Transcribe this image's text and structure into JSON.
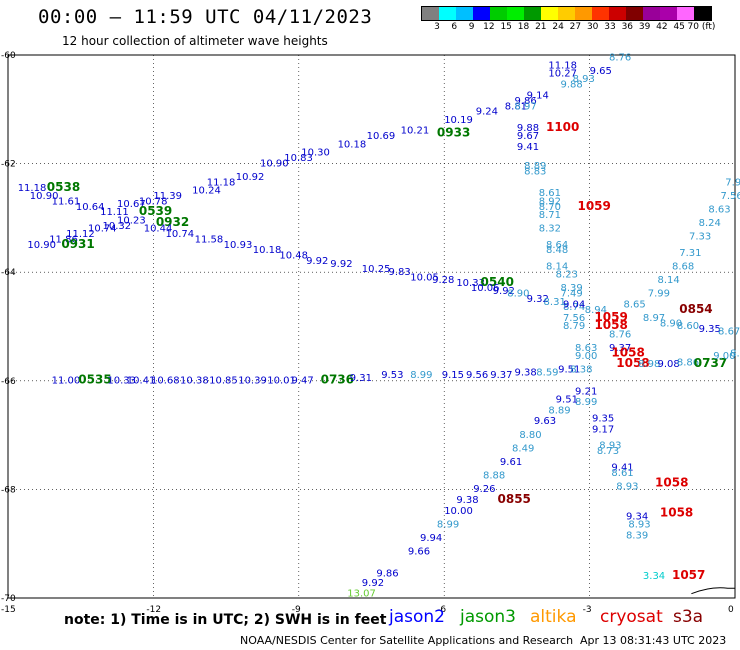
{
  "header": {
    "title": "00:00 – 11:59 UTC 04/11/2023",
    "subtitle": "12 hour collection of altimeter wave heights"
  },
  "colorbar": {
    "colors": [
      "#808080",
      "#00ffff",
      "#00bfff",
      "#0000ff",
      "#00cc00",
      "#00ee00",
      "#009900",
      "#ffff00",
      "#ffcc00",
      "#ff9900",
      "#ff3300",
      "#cc0000",
      "#800000",
      "#990099",
      "#aa00aa",
      "#ff66ff",
      "#000000"
    ],
    "labels": [
      "3",
      "6",
      "9",
      "12",
      "15",
      "18",
      "21",
      "24",
      "27",
      "30",
      "33",
      "36",
      "39",
      "42",
      "45",
      "70 (ft)"
    ]
  },
  "axes": {
    "y_labels": [
      "-60",
      "-62",
      "-64",
      "-66",
      "-68",
      "-70"
    ],
    "x_labels": [
      "-15",
      "-12",
      "-9",
      "-6",
      "-3",
      "0"
    ]
  },
  "chart_data": {
    "type": "map",
    "lon_range": [
      -15,
      0
    ],
    "lat_range": [
      -70,
      -60
    ],
    "grid": true,
    "labels": [
      {
        "t": "11.18",
        "lon": -3.85,
        "lat": -60.25,
        "c": "#0000cc"
      },
      {
        "t": "10.27",
        "lon": -3.85,
        "lat": -60.4,
        "c": "#0000cc"
      },
      {
        "t": "9.88",
        "lon": -3.6,
        "lat": -60.6,
        "c": "#3399cc"
      },
      {
        "t": "8.93",
        "lon": -3.35,
        "lat": -60.5,
        "c": "#3399cc"
      },
      {
        "t": "9.65",
        "lon": -3.0,
        "lat": -60.35,
        "c": "#0000cc"
      },
      {
        "t": "8.76",
        "lon": -2.6,
        "lat": -60.1,
        "c": "#3399cc"
      },
      {
        "t": "9.14",
        "lon": -4.3,
        "lat": -60.8,
        "c": "#0000cc"
      },
      {
        "t": "8.81",
        "lon": -4.75,
        "lat": -61.0,
        "c": "#0000cc"
      },
      {
        "t": "9.24",
        "lon": -5.35,
        "lat": -61.1,
        "c": "#0000cc"
      },
      {
        "t": "10.19",
        "lon": -6.0,
        "lat": -61.25,
        "c": "#0000cc"
      },
      {
        "t": "0933",
        "lon": -6.15,
        "lat": -61.5,
        "c": "#007700",
        "b": true
      },
      {
        "t": "10.21",
        "lon": -6.9,
        "lat": -61.45,
        "c": "#0000cc"
      },
      {
        "t": "10.69",
        "lon": -7.6,
        "lat": -61.55,
        "c": "#0000cc"
      },
      {
        "t": "10.18",
        "lon": -8.2,
        "lat": -61.7,
        "c": "#0000cc"
      },
      {
        "t": "10.30",
        "lon": -8.95,
        "lat": -61.85,
        "c": "#0000cc"
      },
      {
        "t": "10.90",
        "lon": -9.8,
        "lat": -62.05,
        "c": "#0000cc"
      },
      {
        "t": "10.92",
        "lon": -10.3,
        "lat": -62.3,
        "c": "#0000cc"
      },
      {
        "t": "10.83",
        "lon": -9.3,
        "lat": -61.95,
        "c": "#0000cc"
      },
      {
        "t": "11.18",
        "lon": -10.9,
        "lat": -62.4,
        "c": "#0000cc"
      },
      {
        "t": "10.24",
        "lon": -11.2,
        "lat": -62.55,
        "c": "#0000cc"
      },
      {
        "t": "11.39",
        "lon": -12.0,
        "lat": -62.65,
        "c": "#0000cc"
      },
      {
        "t": "10.78",
        "lon": -12.3,
        "lat": -62.75,
        "c": "#0000cc"
      },
      {
        "t": "10.67",
        "lon": -12.75,
        "lat": -62.8,
        "c": "#0000cc"
      },
      {
        "t": "9.86",
        "lon": -4.55,
        "lat": -60.9,
        "c": "#0000cc"
      },
      {
        "t": "8.97",
        "lon": -4.55,
        "lat": -61.0,
        "c": "#3399cc"
      },
      {
        "t": "9.88",
        "lon": -4.5,
        "lat": -61.4,
        "c": "#0000cc"
      },
      {
        "t": "9.67",
        "lon": -4.5,
        "lat": -61.55,
        "c": "#0000cc"
      },
      {
        "t": "9.41",
        "lon": -4.5,
        "lat": -61.75,
        "c": "#0000cc"
      },
      {
        "t": "1100",
        "lon": -3.9,
        "lat": -61.4,
        "c": "#dd0000",
        "b": true
      },
      {
        "t": "8.89",
        "lon": -4.35,
        "lat": -62.1,
        "c": "#3399cc"
      },
      {
        "t": "8.83",
        "lon": -4.35,
        "lat": -62.2,
        "c": "#3399cc"
      },
      {
        "t": "8.61",
        "lon": -4.05,
        "lat": -62.6,
        "c": "#3399cc"
      },
      {
        "t": "8.92",
        "lon": -4.05,
        "lat": -62.75,
        "c": "#3399cc"
      },
      {
        "t": "8.70",
        "lon": -4.05,
        "lat": -62.85,
        "c": "#3399cc"
      },
      {
        "t": "1059",
        "lon": -3.25,
        "lat": -62.85,
        "c": "#dd0000",
        "b": true
      },
      {
        "t": "8.71",
        "lon": -4.05,
        "lat": -63.0,
        "c": "#3399cc"
      },
      {
        "t": "8.32",
        "lon": -4.05,
        "lat": -63.25,
        "c": "#3399cc"
      },
      {
        "t": "8.64",
        "lon": -3.9,
        "lat": -63.55,
        "c": "#3399cc"
      },
      {
        "t": "8.48",
        "lon": -3.9,
        "lat": -63.65,
        "c": "#3399cc"
      },
      {
        "t": "8.14",
        "lon": -3.9,
        "lat": -63.95,
        "c": "#3399cc"
      },
      {
        "t": "8.23",
        "lon": -3.7,
        "lat": -64.1,
        "c": "#3399cc"
      },
      {
        "t": "8.39",
        "lon": -3.6,
        "lat": -64.35,
        "c": "#3399cc"
      },
      {
        "t": "7.49",
        "lon": -3.6,
        "lat": -64.45,
        "c": "#3399cc"
      },
      {
        "t": "8.74",
        "lon": -3.55,
        "lat": -64.7,
        "c": "#3399cc"
      },
      {
        "t": "8.94",
        "lon": -3.1,
        "lat": -64.75,
        "c": "#3399cc"
      },
      {
        "t": "7.56",
        "lon": -3.55,
        "lat": -64.9,
        "c": "#3399cc"
      },
      {
        "t": "8.79",
        "lon": -3.55,
        "lat": -65.05,
        "c": "#3399cc"
      },
      {
        "t": "1059",
        "lon": -2.9,
        "lat": -64.9,
        "c": "#dd0000",
        "b": true
      },
      {
        "t": "1058",
        "lon": -2.9,
        "lat": -65.05,
        "c": "#dd0000",
        "b": true
      },
      {
        "t": "8.76",
        "lon": -2.6,
        "lat": -65.2,
        "c": "#3399cc"
      },
      {
        "t": "8.63",
        "lon": -3.3,
        "lat": -65.45,
        "c": "#3399cc"
      },
      {
        "t": "9.00",
        "lon": -3.3,
        "lat": -65.6,
        "c": "#3399cc"
      },
      {
        "t": "9.37",
        "lon": -2.6,
        "lat": -65.45,
        "c": "#0000cc"
      },
      {
        "t": "1058",
        "lon": -2.55,
        "lat": -65.55,
        "c": "#dd0000",
        "b": true
      },
      {
        "t": "1058",
        "lon": -2.45,
        "lat": -65.75,
        "c": "#dd0000",
        "b": true
      },
      {
        "t": "8.98",
        "lon": -2.0,
        "lat": -65.75,
        "c": "#3399cc"
      },
      {
        "t": "9.08",
        "lon": -1.6,
        "lat": -65.75,
        "c": "#0000cc"
      },
      {
        "t": "8.86",
        "lon": -1.2,
        "lat": -65.72,
        "c": "#3399cc"
      },
      {
        "t": "0737",
        "lon": -0.85,
        "lat": -65.75,
        "c": "#007700",
        "b": true
      },
      {
        "t": "9.00",
        "lon": -0.45,
        "lat": -65.6,
        "c": "#3399cc"
      },
      {
        "t": "8.22",
        "lon": -0.1,
        "lat": -65.55,
        "c": "#3399cc"
      },
      {
        "t": "8.97",
        "lon": -1.9,
        "lat": -64.9,
        "c": "#3399cc"
      },
      {
        "t": "8.90",
        "lon": -1.55,
        "lat": -65.0,
        "c": "#3399cc"
      },
      {
        "t": "8.60",
        "lon": -1.2,
        "lat": -65.05,
        "c": "#3399cc"
      },
      {
        "t": "9.35",
        "lon": -0.75,
        "lat": -65.1,
        "c": "#0000cc"
      },
      {
        "t": "8.67",
        "lon": -0.35,
        "lat": -65.15,
        "c": "#3399cc"
      },
      {
        "t": "0854",
        "lon": -1.15,
        "lat": -64.75,
        "c": "#880000",
        "b": true
      },
      {
        "t": "8.65",
        "lon": -2.3,
        "lat": -64.65,
        "c": "#3399cc"
      },
      {
        "t": "7.99",
        "lon": -1.8,
        "lat": -64.45,
        "c": "#3399cc"
      },
      {
        "t": "8.14",
        "lon": -1.6,
        "lat": -64.2,
        "c": "#3399cc"
      },
      {
        "t": "8.68",
        "lon": -1.3,
        "lat": -63.95,
        "c": "#3399cc"
      },
      {
        "t": "7.31",
        "lon": -1.15,
        "lat": -63.7,
        "c": "#3399cc"
      },
      {
        "t": "7.33",
        "lon": -0.95,
        "lat": -63.4,
        "c": "#3399cc"
      },
      {
        "t": "8.24",
        "lon": -0.75,
        "lat": -63.15,
        "c": "#3399cc"
      },
      {
        "t": "8.63",
        "lon": -0.55,
        "lat": -62.9,
        "c": "#3399cc"
      },
      {
        "t": "7.56",
        "lon": -0.3,
        "lat": -62.65,
        "c": "#3399cc"
      },
      {
        "t": "7.91",
        "lon": -0.2,
        "lat": -62.4,
        "c": "#3399cc"
      },
      {
        "t": "11.18",
        "lon": -14.8,
        "lat": -62.5,
        "c": "#0000cc"
      },
      {
        "t": "0538",
        "lon": -14.2,
        "lat": -62.5,
        "c": "#007700",
        "b": true
      },
      {
        "t": "10.90",
        "lon": -14.55,
        "lat": -62.65,
        "c": "#0000cc"
      },
      {
        "t": "11.61",
        "lon": -14.1,
        "lat": -62.75,
        "c": "#0000cc"
      },
      {
        "t": "10.64",
        "lon": -13.6,
        "lat": -62.85,
        "c": "#0000cc"
      },
      {
        "t": "11.11",
        "lon": -13.1,
        "lat": -62.95,
        "c": "#0000cc"
      },
      {
        "t": "0539",
        "lon": -12.3,
        "lat": -62.95,
        "c": "#007700",
        "b": true
      },
      {
        "t": "10.23",
        "lon": -12.75,
        "lat": -63.1,
        "c": "#0000cc"
      },
      {
        "t": "0932",
        "lon": -11.95,
        "lat": -63.15,
        "c": "#007700",
        "b": true
      },
      {
        "t": "10.74",
        "lon": -13.35,
        "lat": -63.25,
        "c": "#0000cc"
      },
      {
        "t": "10.32",
        "lon": -13.05,
        "lat": -63.2,
        "c": "#0000cc"
      },
      {
        "t": "10.44",
        "lon": -12.2,
        "lat": -63.25,
        "c": "#0000cc"
      },
      {
        "t": "10.74",
        "lon": -11.75,
        "lat": -63.35,
        "c": "#0000cc"
      },
      {
        "t": "11.58",
        "lon": -11.15,
        "lat": -63.45,
        "c": "#0000cc"
      },
      {
        "t": "10.93",
        "lon": -10.55,
        "lat": -63.55,
        "c": "#0000cc"
      },
      {
        "t": "10.18",
        "lon": -9.95,
        "lat": -63.65,
        "c": "#0000cc"
      },
      {
        "t": "10.48",
        "lon": -9.4,
        "lat": -63.75,
        "c": "#0000cc"
      },
      {
        "t": "9.92",
        "lon": -8.85,
        "lat": -63.85,
        "c": "#0000cc"
      },
      {
        "t": "9.92",
        "lon": -8.35,
        "lat": -63.9,
        "c": "#0000cc"
      },
      {
        "t": "10.25",
        "lon": -7.7,
        "lat": -64.0,
        "c": "#0000cc"
      },
      {
        "t": "9.83",
        "lon": -7.15,
        "lat": -64.05,
        "c": "#0000cc"
      },
      {
        "t": "10.05",
        "lon": -6.7,
        "lat": -64.15,
        "c": "#0000cc"
      },
      {
        "t": "9.28",
        "lon": -6.25,
        "lat": -64.2,
        "c": "#0000cc"
      },
      {
        "t": "10.33",
        "lon": -5.75,
        "lat": -64.25,
        "c": "#0000cc"
      },
      {
        "t": "0540",
        "lon": -5.25,
        "lat": -64.25,
        "c": "#007700",
        "b": true
      },
      {
        "t": "10.06",
        "lon": -5.45,
        "lat": -64.35,
        "c": "#0000cc"
      },
      {
        "t": "9.92",
        "lon": -5.0,
        "lat": -64.4,
        "c": "#0000cc"
      },
      {
        "t": "8.90",
        "lon": -4.7,
        "lat": -64.45,
        "c": "#3399cc"
      },
      {
        "t": "9.32",
        "lon": -4.3,
        "lat": -64.55,
        "c": "#0000cc"
      },
      {
        "t": "8.31",
        "lon": -3.95,
        "lat": -64.6,
        "c": "#3399cc"
      },
      {
        "t": "9.04",
        "lon": -3.55,
        "lat": -64.65,
        "c": "#0000cc"
      },
      {
        "t": "10.90",
        "lon": -14.6,
        "lat": -63.55,
        "c": "#0000cc"
      },
      {
        "t": "11.86",
        "lon": -14.15,
        "lat": -63.45,
        "c": "#0000cc"
      },
      {
        "t": "0931",
        "lon": -13.9,
        "lat": -63.55,
        "c": "#007700",
        "b": true
      },
      {
        "t": "11.12",
        "lon": -13.8,
        "lat": -63.35,
        "c": "#0000cc"
      },
      {
        "t": "11.00",
        "lon": -14.1,
        "lat": -66.05,
        "c": "#0000cc"
      },
      {
        "t": "0535",
        "lon": -13.55,
        "lat": -66.05,
        "c": "#007700",
        "b": true
      },
      {
        "t": "10.33",
        "lon": -12.95,
        "lat": -66.05,
        "c": "#0000cc"
      },
      {
        "t": "10.41",
        "lon": -12.55,
        "lat": -66.05,
        "c": "#0000cc"
      },
      {
        "t": "10.68",
        "lon": -12.05,
        "lat": -66.05,
        "c": "#0000cc"
      },
      {
        "t": "10.38",
        "lon": -11.45,
        "lat": -66.05,
        "c": "#0000cc"
      },
      {
        "t": "10.85",
        "lon": -10.85,
        "lat": -66.05,
        "c": "#0000cc"
      },
      {
        "t": "10.39",
        "lon": -10.25,
        "lat": -66.05,
        "c": "#0000cc"
      },
      {
        "t": "10.01",
        "lon": -9.65,
        "lat": -66.05,
        "c": "#0000cc"
      },
      {
        "t": "9.47",
        "lon": -9.15,
        "lat": -66.05,
        "c": "#0000cc"
      },
      {
        "t": "0736",
        "lon": -8.55,
        "lat": -66.05,
        "c": "#007700",
        "b": true
      },
      {
        "t": "9.31",
        "lon": -7.95,
        "lat": -66.0,
        "c": "#0000cc"
      },
      {
        "t": "9.53",
        "lon": -7.3,
        "lat": -65.95,
        "c": "#0000cc"
      },
      {
        "t": "8.99",
        "lon": -6.7,
        "lat": -65.95,
        "c": "#3399cc"
      },
      {
        "t": "9.15",
        "lon": -6.05,
        "lat": -65.95,
        "c": "#0000cc"
      },
      {
        "t": "9.56",
        "lon": -5.55,
        "lat": -65.95,
        "c": "#0000cc"
      },
      {
        "t": "9.37",
        "lon": -5.05,
        "lat": -65.95,
        "c": "#0000cc"
      },
      {
        "t": "9.38",
        "lon": -4.55,
        "lat": -65.9,
        "c": "#0000cc"
      },
      {
        "t": "8.59",
        "lon": -4.1,
        "lat": -65.9,
        "c": "#3399cc"
      },
      {
        "t": "9.51",
        "lon": -3.65,
        "lat": -65.85,
        "c": "#0000cc"
      },
      {
        "t": "8.38",
        "lon": -3.4,
        "lat": -65.85,
        "c": "#3399cc"
      },
      {
        "t": "9.21",
        "lon": -3.3,
        "lat": -66.25,
        "c": "#0000cc"
      },
      {
        "t": "8.99",
        "lon": -3.3,
        "lat": -66.45,
        "c": "#3399cc"
      },
      {
        "t": "9.51",
        "lon": -3.7,
        "lat": -66.4,
        "c": "#0000cc"
      },
      {
        "t": "8.89",
        "lon": -3.85,
        "lat": -66.6,
        "c": "#3399cc"
      },
      {
        "t": "9.63",
        "lon": -4.15,
        "lat": -66.8,
        "c": "#0000cc"
      },
      {
        "t": "8.80",
        "lon": -4.45,
        "lat": -67.05,
        "c": "#3399cc"
      },
      {
        "t": "8.49",
        "lon": -4.6,
        "lat": -67.3,
        "c": "#3399cc"
      },
      {
        "t": "9.61",
        "lon": -4.85,
        "lat": -67.55,
        "c": "#0000cc"
      },
      {
        "t": "8.88",
        "lon": -5.2,
        "lat": -67.8,
        "c": "#3399cc"
      },
      {
        "t": "9.26",
        "lon": -5.4,
        "lat": -68.05,
        "c": "#0000cc"
      },
      {
        "t": "9.38",
        "lon": -5.75,
        "lat": -68.25,
        "c": "#0000cc"
      },
      {
        "t": "0855",
        "lon": -4.9,
        "lat": -68.25,
        "c": "#880000",
        "b": true
      },
      {
        "t": "10.00",
        "lon": -6.0,
        "lat": -68.45,
        "c": "#0000cc"
      },
      {
        "t": "8.99",
        "lon": -6.15,
        "lat": -68.7,
        "c": "#3399cc"
      },
      {
        "t": "9.94",
        "lon": -6.5,
        "lat": -68.95,
        "c": "#0000cc"
      },
      {
        "t": "9.66",
        "lon": -6.75,
        "lat": -69.2,
        "c": "#0000cc"
      },
      {
        "t": "9.86",
        "lon": -7.4,
        "lat": -69.6,
        "c": "#0000cc"
      },
      {
        "t": "9.92",
        "lon": -7.7,
        "lat": -69.78,
        "c": "#0000cc"
      },
      {
        "t": "13.07",
        "lon": -8.0,
        "lat": -69.97,
        "c": "#66cc33"
      },
      {
        "t": "9.35",
        "lon": -2.95,
        "lat": -66.75,
        "c": "#0000cc"
      },
      {
        "t": "9.17",
        "lon": -2.95,
        "lat": -66.95,
        "c": "#0000cc"
      },
      {
        "t": "8.93",
        "lon": -2.8,
        "lat": -67.25,
        "c": "#3399cc"
      },
      {
        "t": "8.73",
        "lon": -2.85,
        "lat": -67.35,
        "c": "#3399cc"
      },
      {
        "t": "9.41",
        "lon": -2.55,
        "lat": -67.65,
        "c": "#0000cc"
      },
      {
        "t": "8.61",
        "lon": -2.55,
        "lat": -67.75,
        "c": "#3399cc"
      },
      {
        "t": "8.93",
        "lon": -2.45,
        "lat": -68.0,
        "c": "#3399cc"
      },
      {
        "t": "1058",
        "lon": -1.65,
        "lat": -67.95,
        "c": "#dd0000",
        "b": true
      },
      {
        "t": "9.34",
        "lon": -2.25,
        "lat": -68.55,
        "c": "#0000cc"
      },
      {
        "t": "8.93",
        "lon": -2.2,
        "lat": -68.7,
        "c": "#3399cc"
      },
      {
        "t": "8.39",
        "lon": -2.25,
        "lat": -68.9,
        "c": "#3399cc"
      },
      {
        "t": "1058",
        "lon": -1.55,
        "lat": -68.5,
        "c": "#dd0000",
        "b": true
      },
      {
        "t": "3.34",
        "lon": -1.9,
        "lat": -69.65,
        "c": "#00cccc"
      },
      {
        "t": "1057",
        "lon": -1.3,
        "lat": -69.65,
        "c": "#dd0000",
        "b": true
      }
    ]
  },
  "footer": {
    "note": "note:  1) Time is in UTC;  2) SWH is in feet",
    "missions": [
      {
        "name": "jason2",
        "color": "#0000ff"
      },
      {
        "name": "jason3",
        "color": "#009900"
      },
      {
        "name": "altika",
        "color": "#ff9900"
      },
      {
        "name": "cryosat",
        "color": "#dd0000"
      },
      {
        "name": "s3a",
        "color": "#880000"
      }
    ],
    "credit": "NOAA/NESDIS Center for Satellite Applications and Research",
    "timestamp": "Apr 13 08:31:43 UTC 2023"
  }
}
